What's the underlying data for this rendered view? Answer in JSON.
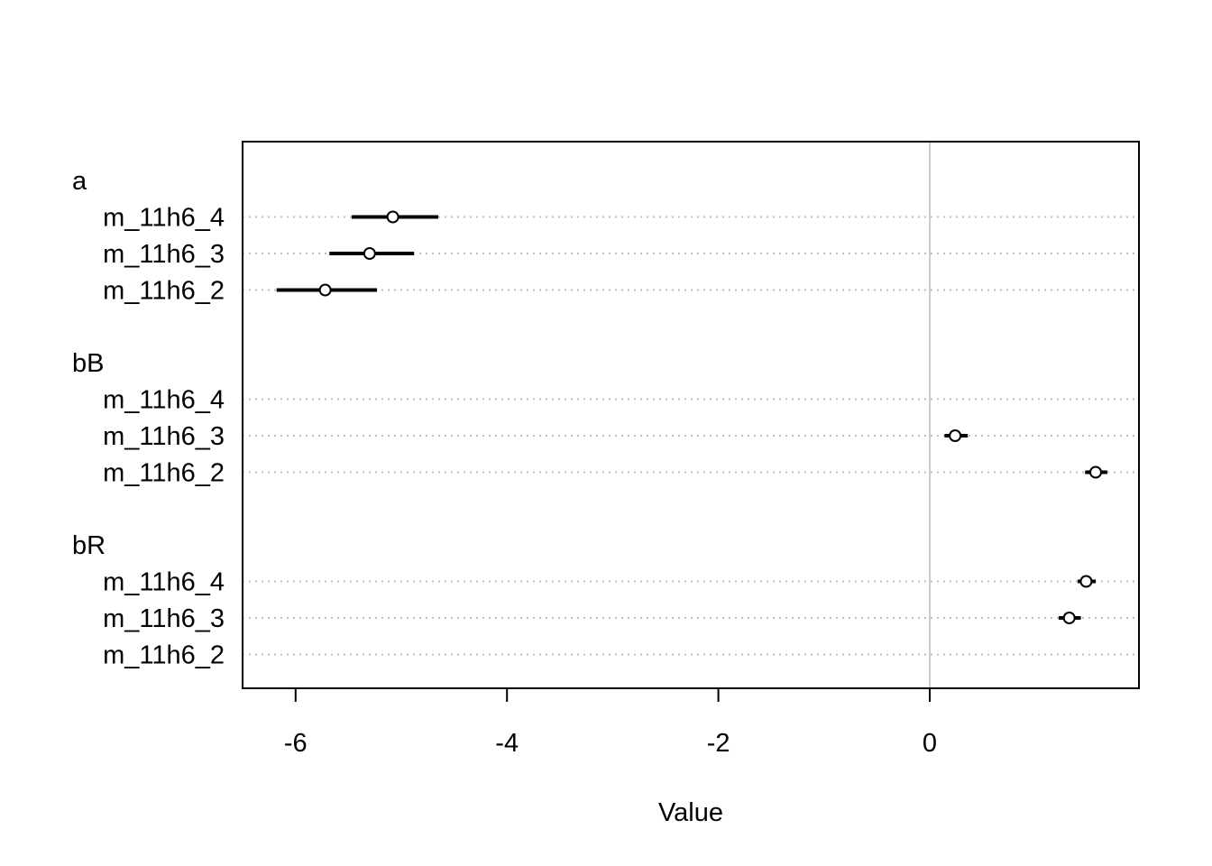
{
  "chart_data": {
    "type": "dotplot",
    "xlabel": "Value",
    "ylabel": "",
    "xlim": [
      -6.5,
      1.9
    ],
    "x_ticks": [
      -6,
      -4,
      -2,
      0
    ],
    "x_tick_labels": [
      "-6",
      "-4",
      "-2",
      "0"
    ],
    "zero_line": 0,
    "row_grid": "dotted",
    "colors": {
      "points": "#000000",
      "grid": "#bebebe",
      "zero_line": "#cccccc"
    },
    "groups": [
      {
        "name": "a",
        "rows": [
          {
            "label": "m_11h6_4",
            "mean": -5.08,
            "lower": -5.47,
            "upper": -4.65
          },
          {
            "label": "m_11h6_3",
            "mean": -5.3,
            "lower": -5.68,
            "upper": -4.88
          },
          {
            "label": "m_11h6_2",
            "mean": -5.72,
            "lower": -6.18,
            "upper": -5.23
          }
        ]
      },
      {
        "name": "bB",
        "rows": [
          {
            "label": "m_11h6_4",
            "mean": null,
            "lower": null,
            "upper": null
          },
          {
            "label": "m_11h6_3",
            "mean": 0.24,
            "lower": 0.14,
            "upper": 0.36
          },
          {
            "label": "m_11h6_2",
            "mean": 1.57,
            "lower": 1.47,
            "upper": 1.68
          }
        ]
      },
      {
        "name": "bR",
        "rows": [
          {
            "label": "m_11h6_4",
            "mean": 1.48,
            "lower": 1.4,
            "upper": 1.57
          },
          {
            "label": "m_11h6_3",
            "mean": 1.32,
            "lower": 1.22,
            "upper": 1.43
          },
          {
            "label": "m_11h6_2",
            "mean": null,
            "lower": null,
            "upper": null
          }
        ]
      }
    ]
  }
}
